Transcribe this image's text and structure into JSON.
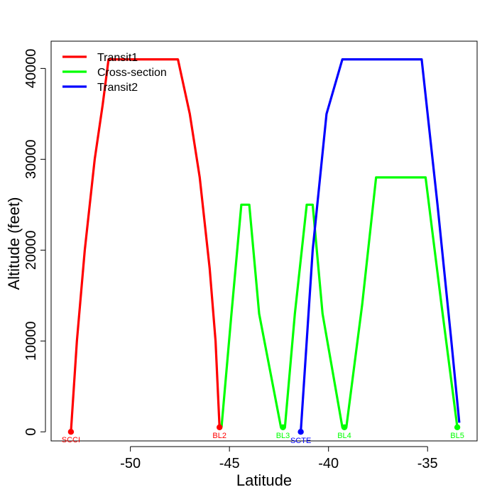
{
  "chart_data": {
    "type": "line",
    "xlabel": "Latitude",
    "ylabel": "Altitude (feet)",
    "xlim": [
      -54,
      -32.5
    ],
    "ylim": [
      -1000,
      43000
    ],
    "x_ticks": [
      -50,
      -45,
      -40,
      -35
    ],
    "y_ticks": [
      0,
      10000,
      20000,
      30000,
      40000
    ],
    "grid": false,
    "legend_position": "top-left",
    "series": [
      {
        "name": "Transit1",
        "color": "#ff0000",
        "points": [
          [
            -53.0,
            0
          ],
          [
            -52.7,
            10000
          ],
          [
            -52.3,
            20000
          ],
          [
            -51.8,
            30000
          ],
          [
            -51.4,
            36000
          ],
          [
            -51.1,
            41000
          ],
          [
            -47.6,
            41000
          ],
          [
            -47.0,
            35000
          ],
          [
            -46.5,
            28000
          ],
          [
            -46.0,
            18000
          ],
          [
            -45.7,
            10000
          ],
          [
            -45.5,
            500
          ]
        ]
      },
      {
        "name": "Cross-section",
        "color": "#00ff00",
        "points": [
          [
            -45.4,
            500
          ],
          [
            -44.9,
            13000
          ],
          [
            -44.4,
            25000
          ],
          [
            -44.0,
            25000
          ],
          [
            -43.5,
            13000
          ],
          [
            -42.4,
            500
          ],
          [
            -42.2,
            500
          ],
          [
            -41.7,
            13000
          ],
          [
            -41.1,
            25000
          ],
          [
            -40.8,
            25000
          ],
          [
            -40.3,
            13000
          ],
          [
            -39.3,
            500
          ],
          [
            -39.1,
            500
          ],
          [
            -38.3,
            14000
          ],
          [
            -37.6,
            28000
          ],
          [
            -35.1,
            28000
          ],
          [
            -34.3,
            14000
          ],
          [
            -33.5,
            500
          ]
        ]
      },
      {
        "name": "Transit2",
        "color": "#0000ff",
        "points": [
          [
            -41.4,
            0
          ],
          [
            -40.8,
            20000
          ],
          [
            -40.1,
            35000
          ],
          [
            -39.3,
            41000
          ],
          [
            -35.3,
            41000
          ],
          [
            -34.5,
            25000
          ],
          [
            -33.8,
            10000
          ],
          [
            -33.4,
            1000
          ]
        ]
      }
    ],
    "labeled_points": [
      {
        "label": "SCCI",
        "x": -53.0,
        "y": 0,
        "color": "#ff0000"
      },
      {
        "label": "BL2",
        "x": -45.5,
        "y": 500,
        "color": "#ff0000"
      },
      {
        "label": "BL3",
        "x": -42.3,
        "y": 500,
        "color": "#00ff00"
      },
      {
        "label": "SCTE",
        "x": -41.4,
        "y": 0,
        "color": "#0000ff"
      },
      {
        "label": "BL4",
        "x": -39.2,
        "y": 500,
        "color": "#00ff00"
      },
      {
        "label": "BL5",
        "x": -33.5,
        "y": 500,
        "color": "#00ff00"
      }
    ]
  }
}
